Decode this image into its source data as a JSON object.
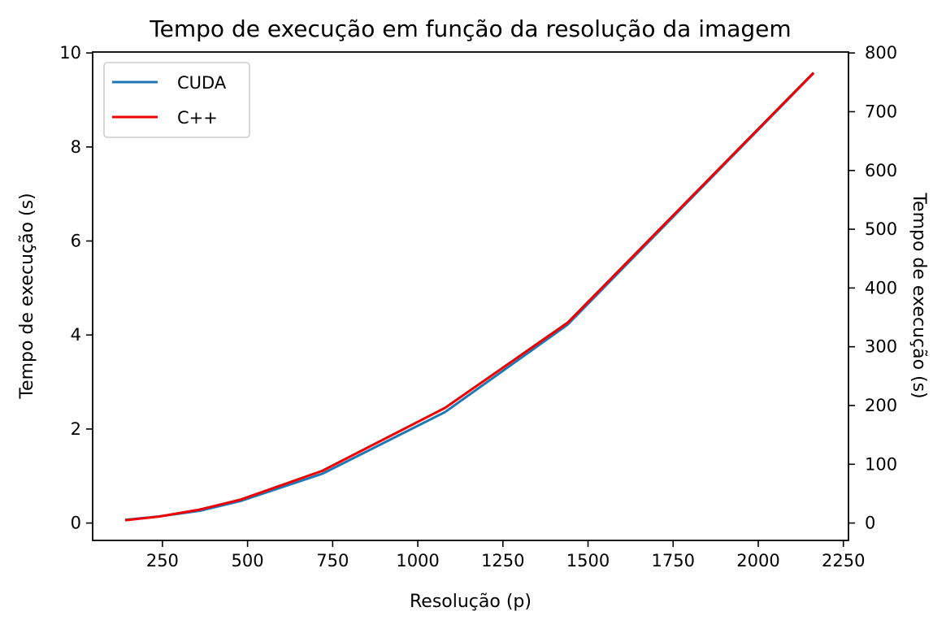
{
  "chart_data": {
    "type": "line",
    "title": "Tempo de execução em função da resolução da imagem",
    "xlabel": "Resolução (p)",
    "ylabel": "Tempo de execução (s)",
    "y2label": "Tempo de execução (s)",
    "xlim": [
      45,
      2265
    ],
    "ylim": [
      -0.37,
      10.02
    ],
    "y2lim": [
      -29.6,
      801.6
    ],
    "x_ticks": [
      250,
      500,
      750,
      1000,
      1250,
      1500,
      1750,
      2000,
      2250
    ],
    "y_ticks": [
      0,
      2,
      4,
      6,
      8,
      10
    ],
    "y2_ticks": [
      0,
      100,
      200,
      300,
      400,
      500,
      600,
      700,
      800
    ],
    "grid": false,
    "legend": "top-left",
    "series": [
      {
        "name": "CUDA",
        "color": "#1f77b4",
        "axis": "left",
        "x": [
          144,
          240,
          360,
          480,
          720,
          1080,
          1440,
          2160
        ],
        "y": [
          0.07,
          0.14,
          0.26,
          0.47,
          1.05,
          2.36,
          4.22,
          9.55
        ]
      },
      {
        "name": "C++",
        "color": "#ee0000",
        "axis": "right",
        "x": [
          144,
          240,
          360,
          480,
          720,
          1080,
          1440,
          2160
        ],
        "y": [
          5,
          11,
          23,
          40,
          89,
          196,
          341,
          765
        ]
      }
    ]
  }
}
